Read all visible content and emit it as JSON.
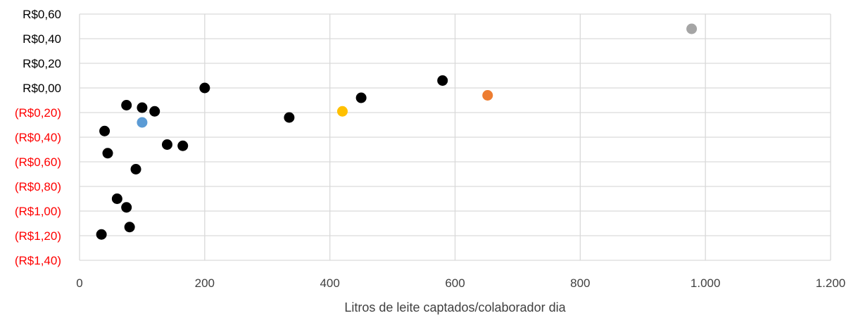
{
  "chart_data": {
    "type": "scatter",
    "title": "",
    "xlabel": "Litros de leite captados/colaborador dia",
    "ylabel": "",
    "xlim": [
      0,
      1200
    ],
    "ylim": [
      -1.4,
      0.6
    ],
    "grid": true,
    "legend": "none",
    "x_ticks": [
      {
        "value": 0,
        "label": "0"
      },
      {
        "value": 200,
        "label": "200"
      },
      {
        "value": 400,
        "label": "400"
      },
      {
        "value": 600,
        "label": "600"
      },
      {
        "value": 800,
        "label": "800"
      },
      {
        "value": 1000,
        "label": "1.000"
      },
      {
        "value": 1200,
        "label": "1.200"
      }
    ],
    "y_ticks": [
      {
        "value": 0.6,
        "label": "R$0,60",
        "color": "#000000"
      },
      {
        "value": 0.4,
        "label": "R$0,40",
        "color": "#000000"
      },
      {
        "value": 0.2,
        "label": "R$0,20",
        "color": "#000000"
      },
      {
        "value": 0.0,
        "label": "R$0,00",
        "color": "#000000"
      },
      {
        "value": -0.2,
        "label": "(R$0,20)",
        "color": "#ff0000"
      },
      {
        "value": -0.4,
        "label": "(R$0,40)",
        "color": "#ff0000"
      },
      {
        "value": -0.6,
        "label": "(R$0,60)",
        "color": "#ff0000"
      },
      {
        "value": -0.8,
        "label": "(R$0,80)",
        "color": "#ff0000"
      },
      {
        "value": -1.0,
        "label": "(R$1,00)",
        "color": "#ff0000"
      },
      {
        "value": -1.2,
        "label": "(R$1,20)",
        "color": "#ff0000"
      },
      {
        "value": -1.4,
        "label": "(R$1,40)",
        "color": "#ff0000"
      }
    ],
    "points": [
      {
        "x": 200,
        "y": 0.0,
        "color": "#000000"
      },
      {
        "x": 75,
        "y": -0.14,
        "color": "#000000"
      },
      {
        "x": 100,
        "y": -0.16,
        "color": "#000000"
      },
      {
        "x": 120,
        "y": -0.19,
        "color": "#000000"
      },
      {
        "x": 100,
        "y": -0.28,
        "color": "#5b9bd5"
      },
      {
        "x": 40,
        "y": -0.35,
        "color": "#000000"
      },
      {
        "x": 140,
        "y": -0.46,
        "color": "#000000"
      },
      {
        "x": 165,
        "y": -0.47,
        "color": "#000000"
      },
      {
        "x": 45,
        "y": -0.53,
        "color": "#000000"
      },
      {
        "x": 90,
        "y": -0.66,
        "color": "#000000"
      },
      {
        "x": 60,
        "y": -0.9,
        "color": "#000000"
      },
      {
        "x": 75,
        "y": -0.97,
        "color": "#000000"
      },
      {
        "x": 80,
        "y": -1.13,
        "color": "#000000"
      },
      {
        "x": 35,
        "y": -1.19,
        "color": "#000000"
      },
      {
        "x": 335,
        "y": -0.24,
        "color": "#000000"
      },
      {
        "x": 420,
        "y": -0.19,
        "color": "#ffc000"
      },
      {
        "x": 450,
        "y": -0.08,
        "color": "#000000"
      },
      {
        "x": 580,
        "y": 0.06,
        "color": "#000000"
      },
      {
        "x": 652,
        "y": -0.06,
        "color": "#ed7d31"
      },
      {
        "x": 978,
        "y": 0.48,
        "color": "#a5a5a5"
      }
    ]
  }
}
